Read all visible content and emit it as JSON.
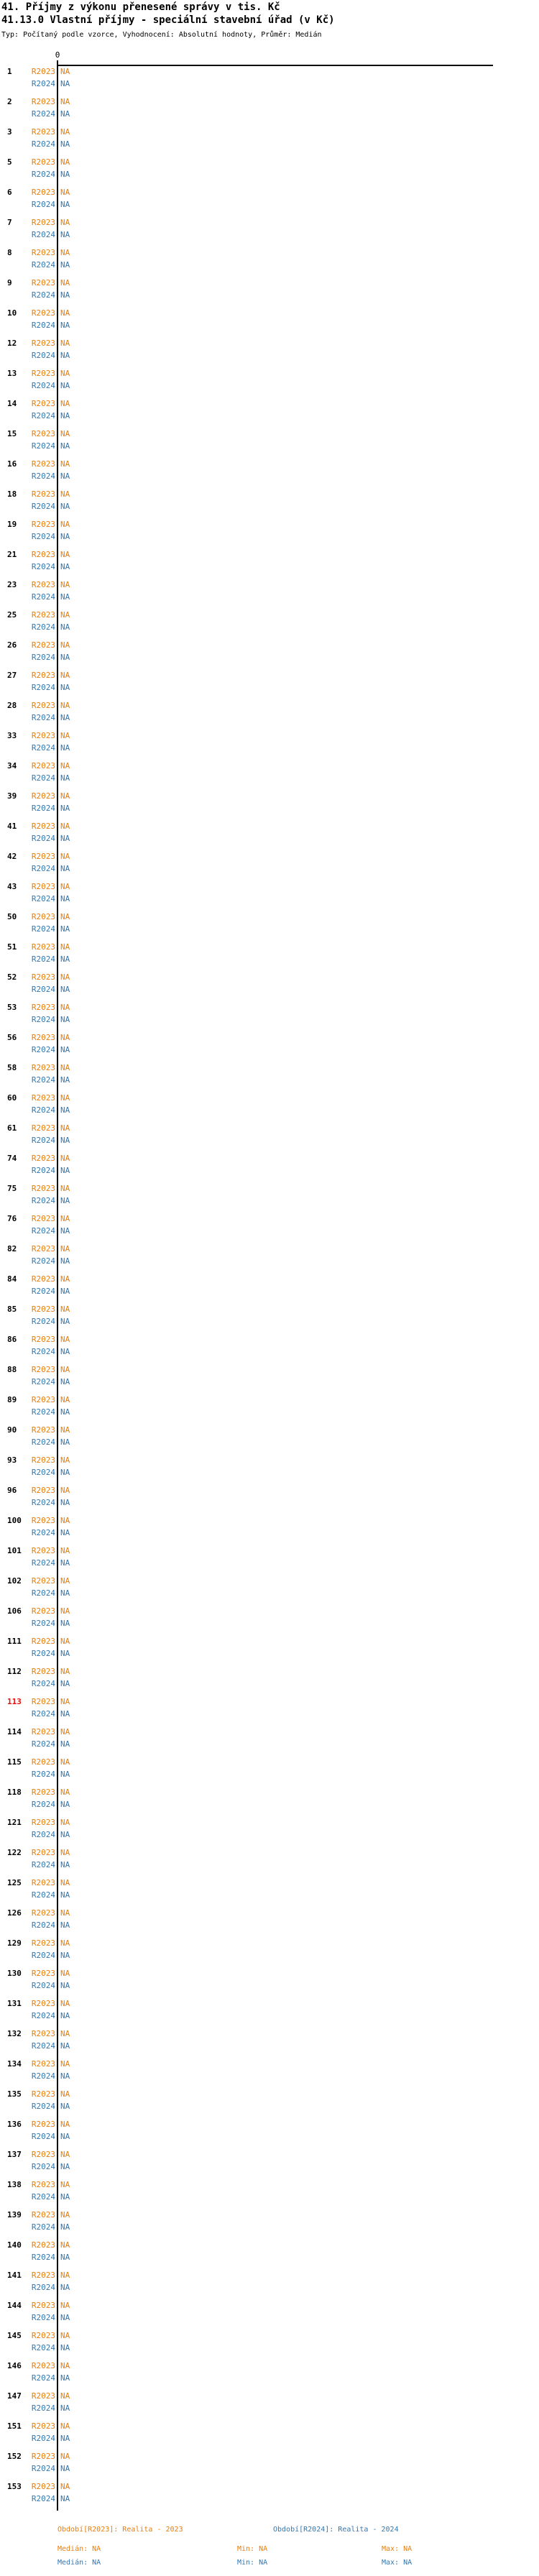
{
  "header": {
    "title": "41. Příjmy z výkonu přenesené správy v tis. Kč",
    "subtitle": "41.13.0 Vlastní příjmy - speciální stavební úřad (v Kč)",
    "meta": "Typ: Počítaný podle vzorce, Vyhodnocení: Absolutní hodnoty, Průměr: Medián"
  },
  "axis": {
    "tick_zero": "0"
  },
  "series": {
    "r2023": {
      "label": "R2023",
      "value_label": "NA"
    },
    "r2024": {
      "label": "R2024",
      "value_label": "NA"
    }
  },
  "highlighted_row": "113",
  "rows": [
    "1",
    "2",
    "3",
    "5",
    "6",
    "7",
    "8",
    "9",
    "10",
    "12",
    "13",
    "14",
    "15",
    "16",
    "18",
    "19",
    "21",
    "23",
    "25",
    "26",
    "27",
    "28",
    "33",
    "34",
    "39",
    "41",
    "42",
    "43",
    "50",
    "51",
    "52",
    "53",
    "56",
    "58",
    "60",
    "61",
    "74",
    "75",
    "76",
    "82",
    "84",
    "85",
    "86",
    "88",
    "89",
    "90",
    "93",
    "96",
    "100",
    "101",
    "102",
    "106",
    "111",
    "112",
    "113",
    "114",
    "115",
    "118",
    "121",
    "122",
    "125",
    "126",
    "129",
    "130",
    "131",
    "132",
    "134",
    "135",
    "136",
    "137",
    "138",
    "139",
    "140",
    "141",
    "144",
    "145",
    "146",
    "147",
    "151",
    "152",
    "153"
  ],
  "legend": {
    "period_r2023": "Období[R2023]: Realita - 2023",
    "period_r2024": "Období[R2024]: Realita - 2024",
    "r2023_median": "Medián: NA",
    "r2023_min": "Min: NA",
    "r2023_max": "Max: NA",
    "r2024_median": "Medián: NA",
    "r2024_min": "Min: NA",
    "r2024_max": "Max: NA"
  },
  "colors": {
    "r2023": "#e87e0c",
    "r2024": "#3377b0",
    "highlight": "#e80c0c",
    "axis": "#000000"
  },
  "chart_data": {
    "type": "bar",
    "orientation": "horizontal",
    "title": "41. Příjmy z výkonu přenesené správy v tis. Kč",
    "subtitle": "41.13.0 Vlastní příjmy - speciální stavební úřad (v Kč)",
    "note": "Typ: Počítaný podle vzorce, Vyhodnocení: Absolutní hodnoty, Průměr: Medián",
    "categories": [
      1,
      2,
      3,
      5,
      6,
      7,
      8,
      9,
      10,
      12,
      13,
      14,
      15,
      16,
      18,
      19,
      21,
      23,
      25,
      26,
      27,
      28,
      33,
      34,
      39,
      41,
      42,
      43,
      50,
      51,
      52,
      53,
      56,
      58,
      60,
      61,
      74,
      75,
      76,
      82,
      84,
      85,
      86,
      88,
      89,
      90,
      93,
      96,
      100,
      101,
      102,
      106,
      111,
      112,
      113,
      114,
      115,
      118,
      121,
      122,
      125,
      126,
      129,
      130,
      131,
      132,
      134,
      135,
      136,
      137,
      138,
      139,
      140,
      141,
      144,
      145,
      146,
      147,
      151,
      152,
      153
    ],
    "n_categories": 81,
    "highlighted_category": 113,
    "series": [
      {
        "name": "R2023",
        "period": "Realita - 2023",
        "all_values_na": true,
        "value_label_for_all": "NA",
        "median": "NA",
        "min": "NA",
        "max": "NA",
        "color": "#e87e0c"
      },
      {
        "name": "R2024",
        "period": "Realita - 2024",
        "all_values_na": true,
        "value_label_for_all": "NA",
        "median": "NA",
        "min": "NA",
        "max": "NA",
        "color": "#3377b0"
      }
    ],
    "xlabel": "",
    "ylabel": "",
    "x_axis": {
      "tick_labels": [
        "0"
      ],
      "range_start": 0
    },
    "grid": false,
    "legend_position": "bottom"
  }
}
